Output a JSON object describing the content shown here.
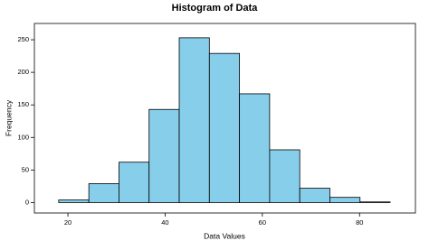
{
  "chart_data": {
    "type": "histogram",
    "title": "Histogram of Data",
    "x_label": "Data Values",
    "y_label": "Frequency",
    "bins": [
      18.1,
      24.3,
      30.5,
      36.7,
      42.9,
      49.1,
      55.3,
      61.5,
      67.7,
      73.9,
      80.1,
      86.3
    ],
    "values": [
      4,
      29,
      62,
      143,
      253,
      229,
      167,
      81,
      22,
      8,
      1
    ],
    "color": "#87ceeb",
    "edge_color": "#000000",
    "xlim": [
      13.1,
      91.5
    ],
    "ylim": [
      -16,
      275
    ],
    "xticks": [
      20,
      40,
      60,
      80
    ],
    "yticks": [
      0,
      50,
      100,
      150,
      200,
      250
    ],
    "grid": false
  }
}
